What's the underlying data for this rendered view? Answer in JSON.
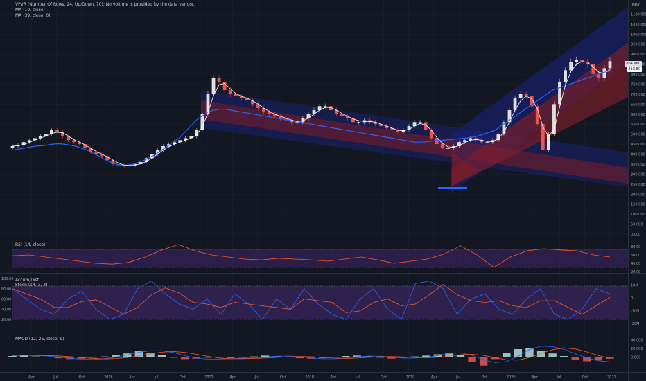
{
  "legend": {
    "vpvr": "VPVR (Number Of Rows, 24, Up/Down, 70): No volume is provided by the data vendor.",
    "ma10": "MA (10, close)",
    "ma39": "MA (39, close, 0)",
    "rsi": "RSI (14, close)",
    "accum": "Accum/Dist",
    "stoch": "Stoch (14, 3, 3)",
    "macd": "MACD (12, 26, close, 9)"
  },
  "currency": "NOK",
  "price_tags": {
    "last": "864.960",
    "ma": "818.80"
  },
  "price_axis": [
    "1100.000",
    "1050.000",
    "1000.000",
    "950.000",
    "900.000",
    "850.000",
    "800.000",
    "750.000",
    "700.000",
    "650.000",
    "600.000",
    "550.000",
    "500.000",
    "450.000",
    "400.000",
    "350.000",
    "300.000",
    "250.000",
    "200.000",
    "150.000",
    "100.000",
    "50.000",
    "0.000"
  ],
  "rsi_axis": [
    "80.00",
    "60.00",
    "40.00",
    "20.00"
  ],
  "stoch_axis_left": [
    "100.00",
    "80.00",
    "60.00",
    "40.00",
    "20.00"
  ],
  "stoch_axis_right": [
    "10M",
    "0",
    "-10M",
    "-20M"
  ],
  "macd_axis": [
    "40.000",
    "20.000",
    "0.000"
  ],
  "time_axis": [
    "Apr",
    "Jul",
    "Oct",
    "2016",
    "Apr",
    "Jul",
    "Oct",
    "2017",
    "Apr",
    "Jul",
    "Oct",
    "2018",
    "Apr",
    "Jul",
    "Oct",
    "2019",
    "Apr",
    "Jul",
    "Oct",
    "2020",
    "Apr",
    "Jul",
    "Oct",
    "2021"
  ],
  "colors": {
    "up": "#e0e0e0",
    "down": "#ef5350",
    "ma10": "#ffffff",
    "ma39": "#2962ff",
    "rsi": "#ff5722",
    "stoch_k": "#2962ff",
    "stoch_d": "#ff5722",
    "band_bg": "#4a2b7a"
  },
  "chart_data": {
    "type": "line",
    "x_start": "2015-01",
    "x_end": "2020-12",
    "close_weekly_approx": [
      440,
      445,
      460,
      470,
      480,
      490,
      500,
      520,
      510,
      490,
      470,
      460,
      450,
      430,
      410,
      400,
      390,
      370,
      350,
      345,
      340,
      345,
      350,
      360,
      380,
      400,
      420,
      440,
      450,
      460,
      470,
      480,
      490,
      520,
      600,
      700,
      780,
      760,
      720,
      700,
      690,
      680,
      670,
      650,
      630,
      610,
      600,
      590,
      580,
      570,
      560,
      560,
      580,
      600,
      620,
      640,
      640,
      620,
      600,
      590,
      580,
      560,
      560,
      570,
      560,
      550,
      540,
      530,
      520,
      510,
      520,
      540,
      560,
      560,
      520,
      480,
      450,
      430,
      430,
      440,
      460,
      470,
      480,
      470,
      460,
      460,
      470,
      500,
      560,
      620,
      680,
      700,
      690,
      640,
      550,
      420,
      500,
      650,
      760,
      820,
      860,
      870,
      860,
      850,
      800,
      780,
      830,
      865
    ],
    "ma39_weekly_approx": [
      420,
      425,
      430,
      435,
      440,
      442,
      445,
      450,
      452,
      450,
      445,
      440,
      430,
      420,
      405,
      390,
      375,
      360,
      350,
      345,
      345,
      350,
      360,
      370,
      385,
      400,
      420,
      440,
      460,
      480,
      510,
      540,
      570,
      590,
      610,
      620,
      625,
      625,
      620,
      615,
      610,
      605,
      600,
      595,
      590,
      585,
      580,
      575,
      570,
      565,
      560,
      555,
      550,
      545,
      540,
      535,
      530,
      525,
      520,
      515,
      510,
      505,
      500,
      495,
      490,
      485,
      480,
      475,
      470,
      465,
      460,
      460,
      462,
      465,
      468,
      470,
      472,
      475,
      478,
      480,
      485,
      490,
      500,
      510,
      520,
      540,
      560,
      580,
      600,
      620,
      640,
      660,
      680,
      700,
      720,
      730,
      740,
      750,
      760,
      770,
      780,
      790,
      800,
      810,
      815
    ],
    "ylim": [
      0,
      1150
    ],
    "rsi_approx": [
      58,
      60,
      55,
      50,
      45,
      40,
      38,
      42,
      55,
      72,
      85,
      70,
      60,
      55,
      50,
      48,
      52,
      50,
      48,
      45,
      50,
      55,
      48,
      40,
      45,
      50,
      62,
      82,
      60,
      30,
      55,
      70,
      75,
      72,
      70,
      60,
      55
    ],
    "rsi_lim": [
      20,
      90
    ],
    "stoch_k_approx": [
      80,
      60,
      40,
      30,
      60,
      75,
      40,
      20,
      30,
      80,
      95,
      70,
      50,
      40,
      60,
      30,
      70,
      50,
      20,
      60,
      40,
      80,
      50,
      30,
      20,
      60,
      80,
      40,
      20,
      90,
      95,
      80,
      30,
      60,
      70,
      40,
      30,
      60,
      80,
      30,
      20,
      40,
      80,
      70
    ],
    "stoch_lim": [
      0,
      100
    ],
    "macd_hist_approx": [
      2,
      3,
      1,
      -1,
      -3,
      -5,
      -4,
      -2,
      1,
      4,
      8,
      14,
      10,
      4,
      -2,
      -5,
      -4,
      -2,
      -1,
      -3,
      -2,
      1,
      3,
      2,
      -1,
      -3,
      -4,
      -3,
      -1,
      2,
      3,
      1,
      -2,
      -4,
      -2,
      1,
      3,
      6,
      10,
      5,
      -12,
      -20,
      -5,
      10,
      18,
      20,
      14,
      8,
      2,
      -6,
      -10,
      -8,
      -4
    ],
    "macd_lim": [
      -30,
      50
    ]
  }
}
